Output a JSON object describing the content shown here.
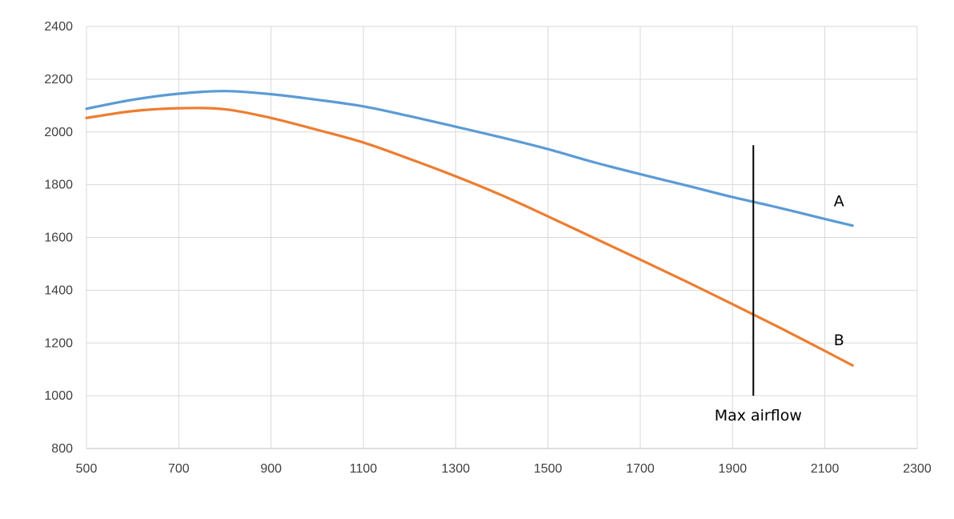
{
  "chart_data": {
    "type": "line",
    "title": "",
    "xlabel": "",
    "ylabel": "",
    "xlim": [
      500,
      2300
    ],
    "ylim": [
      800,
      2400
    ],
    "x_ticks": [
      500,
      700,
      900,
      1100,
      1300,
      1500,
      1700,
      1900,
      2100,
      2300
    ],
    "y_ticks": [
      800,
      1000,
      1200,
      1400,
      1600,
      1800,
      2000,
      2200,
      2400
    ],
    "x_tick_labels": [
      "500",
      "700",
      "900",
      "1100",
      "1300",
      "1500",
      "1700",
      "1900",
      "2100",
      "2300"
    ],
    "y_tick_labels": [
      "800",
      "1000",
      "1200",
      "1400",
      "1600",
      "1800",
      "2000",
      "2200",
      "2400"
    ],
    "grid": true,
    "series": [
      {
        "name": "A",
        "color": "#5b9bd5",
        "x": [
          500,
          600,
          700,
          800,
          900,
          1000,
          1100,
          1200,
          1300,
          1400,
          1500,
          1600,
          1700,
          1800,
          1900,
          2000,
          2100,
          2160
        ],
        "y": [
          2088,
          2122,
          2145,
          2155,
          2143,
          2122,
          2097,
          2060,
          2020,
          1979,
          1935,
          1885,
          1840,
          1797,
          1753,
          1713,
          1670,
          1645
        ]
      },
      {
        "name": "B",
        "color": "#ed7d31",
        "x": [
          500,
          600,
          700,
          800,
          900,
          1000,
          1100,
          1200,
          1300,
          1400,
          1500,
          1600,
          1700,
          1800,
          1900,
          2000,
          2100,
          2160
        ],
        "y": [
          2053,
          2079,
          2090,
          2086,
          2053,
          2008,
          1960,
          1898,
          1832,
          1760,
          1680,
          1598,
          1516,
          1433,
          1347,
          1260,
          1170,
          1115
        ]
      }
    ],
    "annotations": [
      {
        "type": "vline",
        "x": 1945,
        "y_range": [
          1000,
          1950
        ],
        "text": "Max airflow",
        "color": "#000000"
      }
    ]
  }
}
